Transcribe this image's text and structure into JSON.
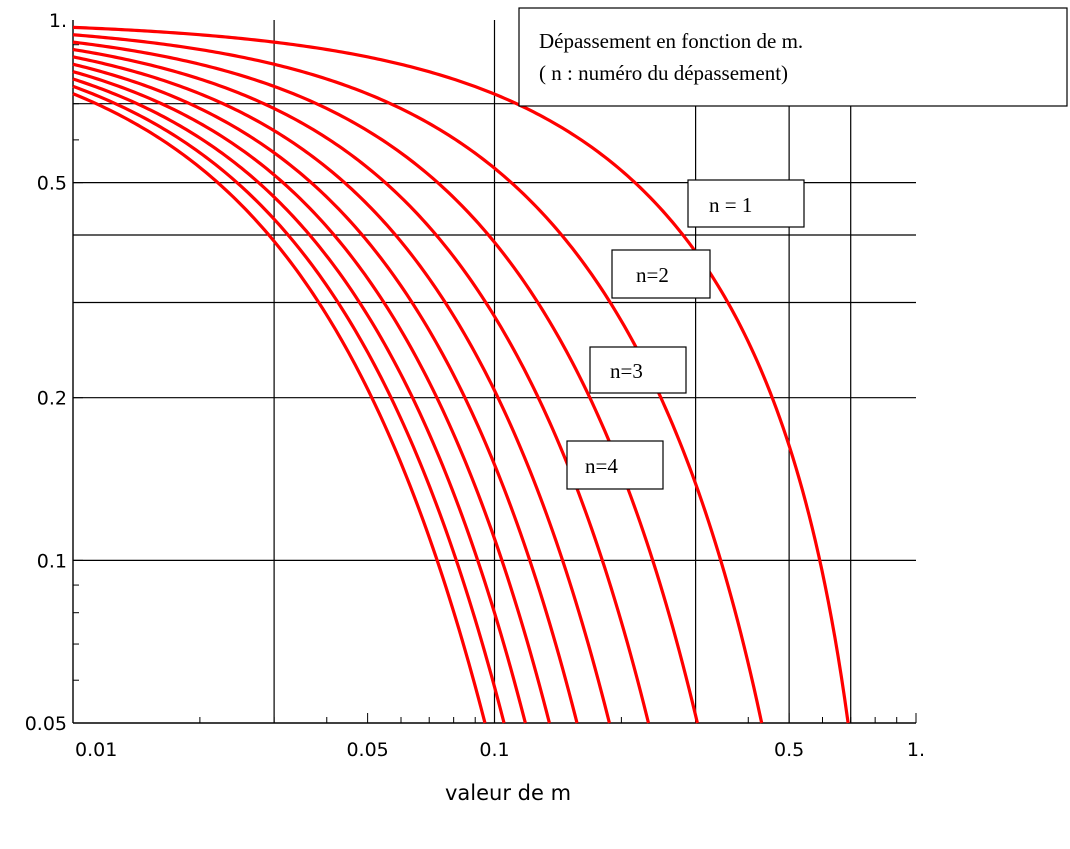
{
  "chart_data": {
    "type": "line",
    "title": "Dépassement en fonction de m.",
    "subtitle": "( n : numéro du dépassement)",
    "xlabel": "valeur de m",
    "ylabel": "",
    "xscale": "log",
    "yscale": "log",
    "xlim": [
      0.01,
      1.0
    ],
    "ylim": [
      0.05,
      1.0
    ],
    "grid": true,
    "x_tick_labels": [
      {
        "value": 0.01,
        "label": "0.01"
      },
      {
        "value": 0.05,
        "label": "0.05"
      },
      {
        "value": 0.1,
        "label": "0.1"
      },
      {
        "value": 0.5,
        "label": "0.5"
      },
      {
        "value": 1.0,
        "label": "1."
      }
    ],
    "y_tick_labels": [
      {
        "value": 0.05,
        "label": "0.05"
      },
      {
        "value": 0.1,
        "label": "0.1"
      },
      {
        "value": 0.2,
        "label": "0.2"
      },
      {
        "value": 0.5,
        "label": "0.5"
      },
      {
        "value": 1.0,
        "label": "1."
      }
    ],
    "formula": "exp(-n*pi*m/sqrt(1-m^2))",
    "series": [
      {
        "name": "n = 1",
        "n": 1
      },
      {
        "name": "n=2",
        "n": 2
      },
      {
        "name": "n=3",
        "n": 3
      },
      {
        "name": "n=4",
        "n": 4
      },
      {
        "n": 5
      },
      {
        "n": 6
      },
      {
        "n": 7
      },
      {
        "n": 8
      },
      {
        "n": 9
      },
      {
        "n": 10
      }
    ],
    "curve_color": "#ff0000",
    "grid_color": "#000000",
    "labels": [
      {
        "text": "n = 1",
        "n": 1
      },
      {
        "text": "n=2",
        "n": 2
      },
      {
        "text": "n=3",
        "n": 3
      },
      {
        "text": "n=4",
        "n": 4
      }
    ]
  }
}
